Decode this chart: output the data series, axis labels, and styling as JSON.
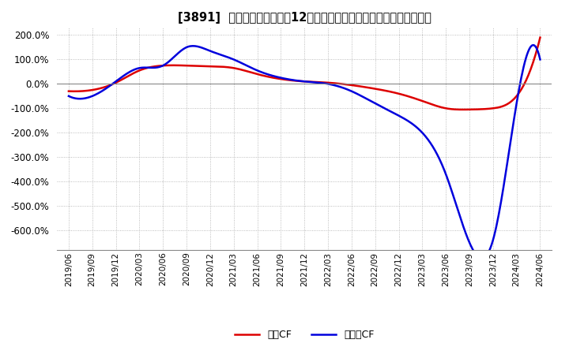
{
  "title": "[3891]  キャッシュフローの12か月移動合計の対前年同期増減率の推移",
  "legend_labels": [
    "営業CF",
    "フリーCF"
  ],
  "legend_colors": [
    "#dd0000",
    "#0000dd"
  ],
  "ylim": [
    -680,
    230
  ],
  "yticks": [
    200,
    100,
    0,
    -100,
    -200,
    -300,
    -400,
    -500,
    -600
  ],
  "background_color": "#ffffff",
  "grid_color": "#aaaaaa",
  "operating_cf_values": [
    -30,
    -25,
    5,
    55,
    75,
    75,
    72,
    65,
    40,
    20,
    10,
    5,
    -5,
    -20,
    -40,
    -70,
    -100,
    -105,
    -100,
    -50,
    190
  ],
  "free_cf_values": [
    -50,
    -50,
    10,
    65,
    75,
    150,
    135,
    100,
    55,
    25,
    10,
    0,
    -30,
    -80,
    -130,
    -200,
    -370,
    -650,
    -640,
    -80,
    100
  ],
  "xtick_labels": [
    "2019/06",
    "2019/09",
    "2019/12",
    "2020/03",
    "2020/06",
    "2020/09",
    "2020/12",
    "2021/03",
    "2021/06",
    "2021/09",
    "2021/12",
    "2022/03",
    "2022/06",
    "2022/09",
    "2022/12",
    "2023/03",
    "2023/06",
    "2023/09",
    "2023/12",
    "2024/03",
    "2024/06"
  ],
  "font_family": [
    "IPAexGothic",
    "Noto Sans CJK JP",
    "MS Gothic",
    "Yu Gothic",
    "Meiryo",
    "Hiragino Sans GB",
    "DejaVu Sans"
  ]
}
